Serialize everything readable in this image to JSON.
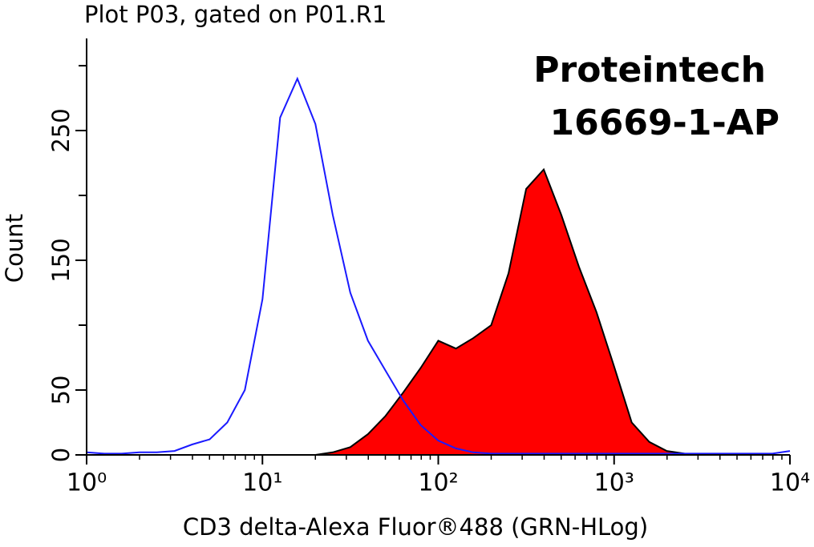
{
  "chart_data": {
    "type": "histogram",
    "title": "Plot P03, gated on P01.R1",
    "annotations": [
      "Proteintech",
      "16669-1-AP"
    ],
    "xlabel": "CD3 delta-Alexa Fluor®488 (GRN-HLog)",
    "ylabel": "Count",
    "xscale": "log",
    "xlim": [
      1,
      10000
    ],
    "xticks": [
      {
        "value": 1,
        "label": "10⁰"
      },
      {
        "value": 10,
        "label": "10¹"
      },
      {
        "value": 100,
        "label": "10²"
      },
      {
        "value": 1000,
        "label": "10³"
      },
      {
        "value": 10000,
        "label": "10⁴"
      }
    ],
    "ylim": [
      0,
      321
    ],
    "yticks": [
      0,
      50,
      150,
      250
    ],
    "yminor_ticks": [
      100,
      200,
      300
    ],
    "x": [
      1,
      1.26,
      1.58,
      2,
      2.51,
      3.16,
      3.98,
      5.01,
      6.31,
      7.94,
      10,
      12.6,
      15.8,
      20,
      25.1,
      31.6,
      39.8,
      50.1,
      63.1,
      79.4,
      100,
      126,
      158,
      200,
      251,
      316,
      398,
      501,
      631,
      794,
      1000,
      1259,
      1585,
      1995,
      2512,
      3162,
      3981,
      5012,
      6310,
      7943,
      10000
    ],
    "series": [
      {
        "color": "#ff0000",
        "edgecolor": "#000000",
        "fill": true,
        "values": [
          0,
          0,
          0,
          0,
          0,
          0,
          0,
          0,
          0,
          0,
          0,
          0,
          0,
          0,
          2,
          6,
          16,
          30,
          48,
          67,
          88,
          82,
          90,
          100,
          140,
          205,
          220,
          185,
          145,
          110,
          68,
          25,
          10,
          3,
          1,
          0,
          0,
          0,
          0,
          0,
          0
        ]
      },
      {
        "color": "#1a1aff",
        "fill": false,
        "values": [
          2,
          1,
          1,
          2,
          2,
          3,
          8,
          12,
          25,
          50,
          120,
          260,
          290,
          255,
          185,
          125,
          88,
          65,
          42,
          23,
          11,
          5,
          2,
          1,
          1,
          1,
          1,
          1,
          1,
          1,
          1,
          1,
          1,
          1,
          1,
          1,
          1,
          1,
          1,
          1,
          3
        ]
      }
    ]
  }
}
